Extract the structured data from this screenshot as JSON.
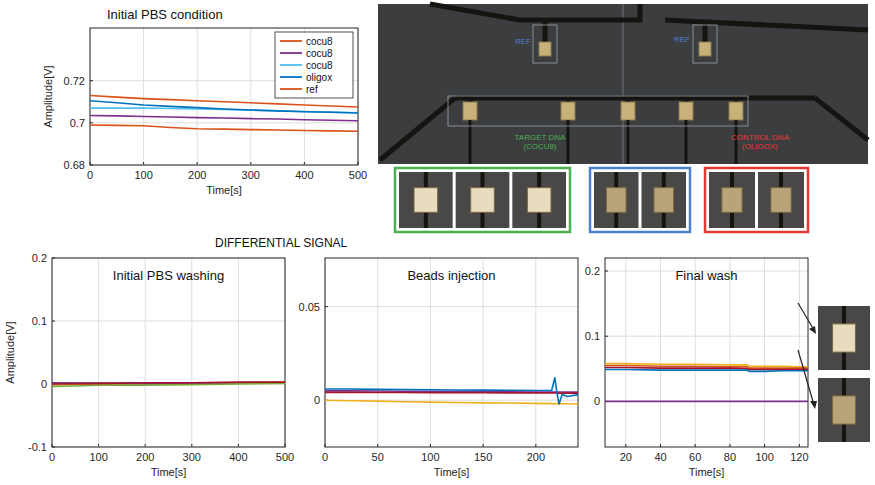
{
  "chart_data": [
    {
      "type": "line",
      "title": "Initial PBS condition",
      "x_label": "Time[s]",
      "y_label": "Amplitude[V]",
      "x": [
        0,
        50,
        100,
        150,
        200,
        250,
        300,
        350,
        400,
        450,
        500
      ],
      "xlim": [
        0,
        500
      ],
      "xticks": [
        0,
        100,
        200,
        300,
        400,
        500
      ],
      "ylim": [
        0.68,
        0.745
      ],
      "yticks": [
        0.68,
        0.7,
        0.72
      ],
      "grid": true,
      "legend": "upper right",
      "series": [
        {
          "name": "cocu8",
          "color": "#d95319",
          "values": [
            0.713,
            0.7122,
            0.7115,
            0.711,
            0.7105,
            0.71,
            0.7095,
            0.709,
            0.7085,
            0.708,
            0.7075
          ]
        },
        {
          "name": "cocu8",
          "color": "#7e2f8e",
          "values": [
            0.7035,
            0.7033,
            0.703,
            0.7028,
            0.7025,
            0.7023,
            0.702,
            0.7018,
            0.7015,
            0.7012,
            0.701
          ]
        },
        {
          "name": "cocu8",
          "color": "#4dbeee",
          "values": [
            0.707,
            0.707,
            0.707,
            0.7068,
            0.7066,
            0.7063,
            0.706,
            0.7057,
            0.7054,
            0.7051,
            0.7048
          ]
        },
        {
          "name": "oligox",
          "color": "#0072bd",
          "values": [
            0.7105,
            0.7095,
            0.7085,
            0.7078,
            0.7072,
            0.7066,
            0.7061,
            0.7057,
            0.7053,
            0.705,
            0.7047
          ]
        },
        {
          "name": "ref",
          "color": "#d95319",
          "values": [
            0.699,
            0.6988,
            0.6986,
            0.6978,
            0.6972,
            0.697,
            0.6968,
            0.6966,
            0.6964,
            0.6962,
            0.696
          ]
        }
      ]
    },
    {
      "type": "line",
      "title": "Initial PBS washing",
      "x_label": "Time[s]",
      "y_label": "Amplitude[V]",
      "x": [
        0,
        100,
        200,
        300,
        400,
        500
      ],
      "xlim": [
        0,
        500
      ],
      "xticks": [
        0,
        100,
        200,
        300,
        400,
        500
      ],
      "ylim": [
        -0.1,
        0.2
      ],
      "yticks": [
        -0.1,
        0,
        0.1,
        0.2
      ],
      "grid": true,
      "series": [
        {
          "color": "#0072bd",
          "values": [
            0.001,
            0.001,
            0.0005,
            0.001,
            0.002,
            0.002
          ]
        },
        {
          "color": "#d95319",
          "values": [
            -0.001,
            0,
            0.001,
            0.001,
            0.002,
            0.003
          ]
        },
        {
          "color": "#edb120",
          "values": [
            0,
            0.001,
            0.001,
            0.002,
            0.002,
            0.003
          ]
        },
        {
          "color": "#7e2f8e",
          "values": [
            0.002,
            0.001,
            0.001,
            0.001,
            0.002,
            0.002
          ]
        },
        {
          "color": "#77ac30",
          "values": [
            -0.004,
            -0.002,
            -0.002,
            -0.001,
            0,
            0.001
          ]
        },
        {
          "color": "#a2142f",
          "values": [
            0,
            0.001,
            0.002,
            0.002,
            0.003,
            0.003
          ]
        }
      ]
    },
    {
      "type": "line",
      "title": "Beads injection",
      "x_label": "Time[s]",
      "x": [
        0,
        25,
        50,
        75,
        100,
        125,
        150,
        175,
        200,
        215,
        218,
        220,
        222,
        225,
        230,
        240
      ],
      "xlim": [
        0,
        240
      ],
      "xticks": [
        0,
        50,
        100,
        150,
        200
      ],
      "ylim": [
        -0.025,
        0.076
      ],
      "yticks": [
        0,
        0.05
      ],
      "grid": true,
      "series": [
        {
          "color": "#7e2f8e",
          "values": [
            0.005,
            0.005,
            0.0049,
            0.0048,
            0.0047,
            0.0046,
            0.0045,
            0.0045,
            0.0044,
            0.0044,
            0.0044,
            0.0044,
            0.0044,
            0.0044,
            0.0043,
            0.0043
          ]
        },
        {
          "color": "#a2142f",
          "values": [
            0.0042,
            0.0042,
            0.0041,
            0.0041,
            0.004,
            0.004,
            0.004,
            0.0039,
            0.0039,
            0.0039,
            0.0039,
            0.0039,
            0.0038,
            0.0038,
            0.0038,
            0.0038
          ]
        },
        {
          "color": "#edb120",
          "values": [
            0,
            -0.0003,
            -0.0005,
            -0.0008,
            -0.001,
            -0.0012,
            -0.0014,
            -0.0015,
            -0.0017,
            -0.0018,
            -0.0018,
            -0.0018,
            -0.0018,
            -0.0019,
            -0.0019,
            -0.002
          ]
        },
        {
          "color": "#0072bd",
          "values": [
            0.006,
            0.006,
            0.0058,
            0.0057,
            0.0056,
            0.0055,
            0.0054,
            0.0053,
            0.0052,
            0.0052,
            0.012,
            0.004,
            -0.002,
            0.003,
            0.002,
            0.003
          ]
        }
      ]
    },
    {
      "type": "line",
      "title": "Final wash",
      "x_label": "Time[s]",
      "x": [
        8,
        20,
        40,
        60,
        80,
        90,
        91,
        100,
        110,
        120,
        125
      ],
      "xlim": [
        8,
        125
      ],
      "xticks": [
        20,
        40,
        60,
        80,
        100,
        120
      ],
      "ylim": [
        -0.07,
        0.22
      ],
      "yticks": [
        0,
        0.1,
        0.2
      ],
      "grid": true,
      "series": [
        {
          "color": "#edb120",
          "values": [
            0.058,
            0.058,
            0.057,
            0.057,
            0.056,
            0.056,
            0.054,
            0.054,
            0.054,
            0.053,
            0.053
          ]
        },
        {
          "color": "#d95319",
          "values": [
            0.055,
            0.055,
            0.054,
            0.054,
            0.053,
            0.053,
            0.051,
            0.051,
            0.051,
            0.051,
            0.051
          ]
        },
        {
          "color": "#a2142f",
          "values": [
            0.052,
            0.052,
            0.051,
            0.051,
            0.051,
            0.05,
            0.049,
            0.049,
            0.049,
            0.049,
            0.049
          ]
        },
        {
          "color": "#0072bd",
          "values": [
            0.049,
            0.049,
            0.048,
            0.048,
            0.048,
            0.048,
            0.046,
            0.046,
            0.047,
            0.047,
            0.047
          ]
        },
        {
          "color": "#7e2f8e",
          "values": [
            0,
            0,
            0,
            0,
            0,
            0,
            0,
            0,
            0,
            0,
            0
          ]
        }
      ]
    }
  ],
  "figure": {
    "heading": "DIFFERENTIAL SIGNAL",
    "photo_labels": [
      "REF",
      "REF",
      "TARGET DNA (COCU8)",
      "CONTROL DNA (OLIGOX)"
    ]
  }
}
